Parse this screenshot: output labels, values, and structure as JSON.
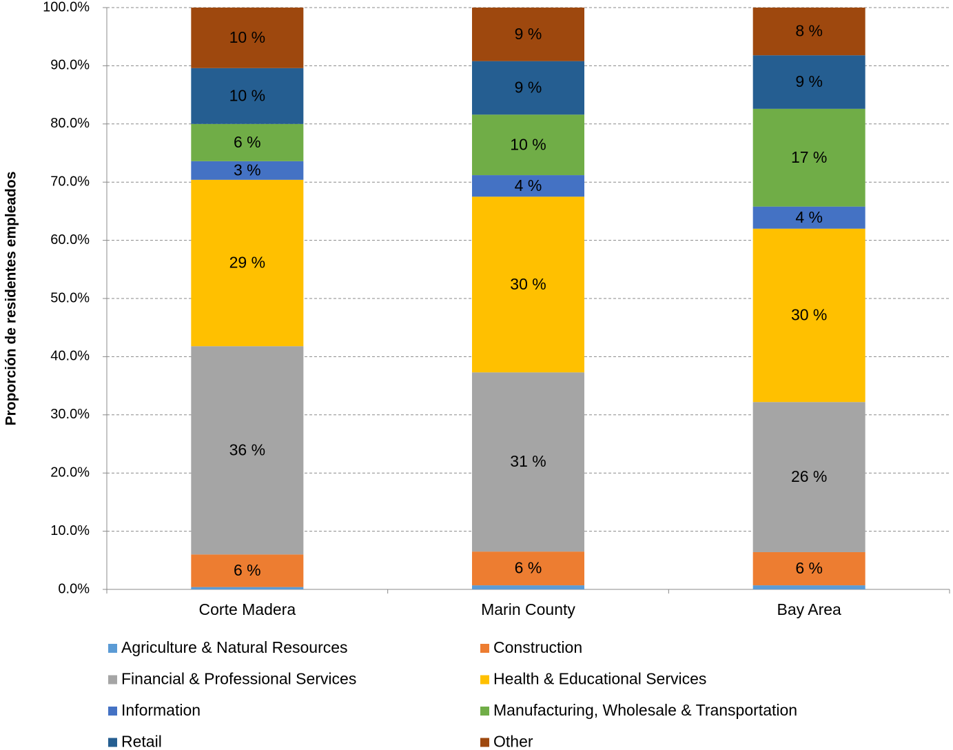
{
  "chart_data": {
    "type": "stacked_bar",
    "y_label": "Proporción de residentes empleados",
    "categories": [
      "Corte Madera",
      "Marin County",
      "Bay Area"
    ],
    "ylim": [
      0,
      100
    ],
    "yticks": [
      {
        "value": 0,
        "label": "0.0%"
      },
      {
        "value": 10,
        "label": "10.0%"
      },
      {
        "value": 20,
        "label": "20.0%"
      },
      {
        "value": 30,
        "label": "30.0%"
      },
      {
        "value": 40,
        "label": "40.0%"
      },
      {
        "value": 50,
        "label": "50.0%"
      },
      {
        "value": 60,
        "label": "60.0%"
      },
      {
        "value": 70,
        "label": "70.0%"
      },
      {
        "value": 80,
        "label": "80.0%"
      },
      {
        "value": 90,
        "label": "90.0%"
      },
      {
        "value": 100,
        "label": "100.0%"
      }
    ],
    "grid": true,
    "series": [
      {
        "name": "Agriculture & Natural Resources",
        "color": "#5b9bd5",
        "values": [
          0.4,
          0.7,
          0.7
        ]
      },
      {
        "name": "Construction",
        "color": "#ed7d31",
        "values": [
          5.6,
          5.8,
          5.7
        ],
        "value_labels": [
          "6 %",
          "6 %",
          "6 %"
        ]
      },
      {
        "name": "Financial & Professional Services",
        "color": "#a5a5a5",
        "values": [
          35.8,
          30.8,
          25.8
        ],
        "value_labels": [
          "36 %",
          "31 %",
          "26 %"
        ]
      },
      {
        "name": "Health & Educational Services",
        "color": "#ffc000",
        "values": [
          28.6,
          30.2,
          29.8
        ],
        "value_labels": [
          "29 %",
          "30 %",
          "30 %"
        ]
      },
      {
        "name": "Information",
        "color": "#4472c4",
        "values": [
          3.2,
          3.7,
          3.8
        ],
        "value_labels": [
          "3 %",
          "4 %",
          "4 %"
        ]
      },
      {
        "name": "Manufacturing, Wholesale & Transportation",
        "color": "#70ad47",
        "values": [
          6.4,
          10.4,
          16.8
        ],
        "value_labels": [
          "6 %",
          "10 %",
          "17 %"
        ]
      },
      {
        "name": "Retail",
        "color": "#255e91",
        "values": [
          9.6,
          9.2,
          9.2
        ],
        "value_labels": [
          "10 %",
          "9 %",
          "9 %"
        ]
      },
      {
        "name": "Other",
        "color": "#9e480e",
        "values": [
          10.4,
          9.2,
          8.2
        ],
        "value_labels": [
          "10 %",
          "9 %",
          "8 %"
        ]
      }
    ]
  }
}
